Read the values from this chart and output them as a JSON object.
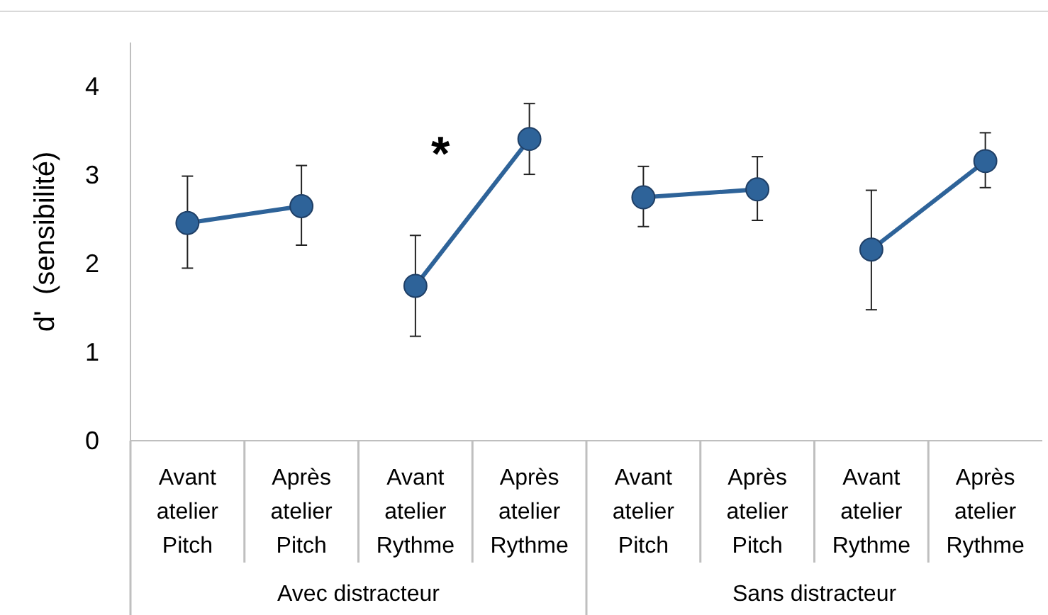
{
  "chart_data": {
    "type": "line",
    "ylabel": "d'  (sensibilité)",
    "categories": [
      "Avant atelier Pitch",
      "Après atelier Pitch",
      "Avant atelier Rythme",
      "Après atelier Rythme",
      "Avant atelier Pitch",
      "Après atelier Pitch",
      "Avant atelier Rythme",
      "Après atelier Rythme"
    ],
    "series": [
      {
        "color": "#2e6399",
        "values": [
          2.46,
          2.65,
          null,
          null,
          null,
          null,
          null,
          null
        ],
        "errors": [
          [
            1.95,
            2.99
          ],
          [
            2.21,
            3.11
          ],
          null,
          null,
          null,
          null,
          null,
          null
        ]
      },
      {
        "color": "#2e6399",
        "values": [
          null,
          null,
          1.75,
          3.41,
          null,
          null,
          null,
          null
        ],
        "errors": [
          null,
          null,
          [
            1.18,
            2.32
          ],
          [
            3.01,
            3.81
          ],
          null,
          null,
          null,
          null
        ]
      },
      {
        "color": "#2e6399",
        "values": [
          null,
          null,
          null,
          null,
          2.75,
          2.84,
          null,
          null
        ],
        "errors": [
          null,
          null,
          null,
          null,
          [
            2.42,
            3.1
          ],
          [
            2.49,
            3.21
          ],
          null,
          null
        ]
      },
      {
        "color": "#2e6399",
        "values": [
          null,
          null,
          null,
          null,
          null,
          null,
          2.16,
          3.16
        ],
        "errors": [
          null,
          null,
          null,
          null,
          null,
          null,
          [
            1.48,
            2.83
          ],
          [
            2.86,
            3.48
          ]
        ]
      }
    ],
    "ylim": [
      0,
      4.5
    ],
    "yticks": [
      0,
      1,
      2,
      3,
      4
    ],
    "marker": "circle",
    "line_style": "solid",
    "annotations": [
      "*",
      "Avec distracteur",
      "Sans distracteur"
    ]
  }
}
